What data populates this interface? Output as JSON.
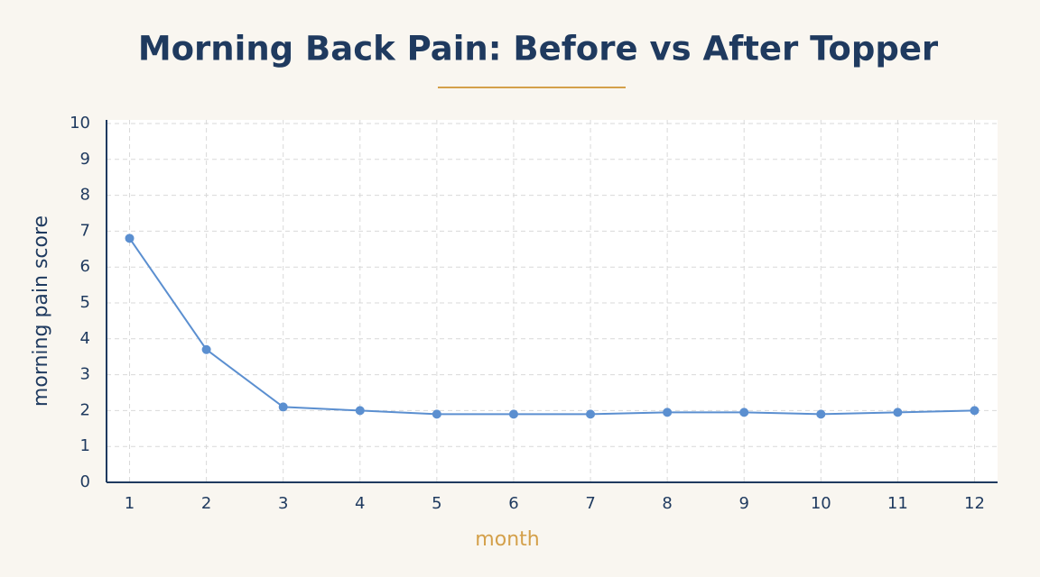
{
  "chart_data": {
    "type": "line",
    "title": "Morning Back Pain: Before vs After Topper",
    "x_label": "month",
    "y_label": "morning pain score",
    "x": [
      1,
      2,
      3,
      4,
      5,
      6,
      7,
      8,
      9,
      10,
      11,
      12
    ],
    "series": [
      {
        "color": "#5b8fd0",
        "values": [
          6.8,
          3.7,
          2.1,
          2.0,
          1.9,
          1.9,
          1.9,
          1.95,
          1.95,
          1.9,
          1.95,
          2.0
        ]
      }
    ],
    "xlim": [
      0.7,
      12.3
    ],
    "xticks": [
      1,
      2,
      3,
      4,
      5,
      6,
      7,
      8,
      9,
      10,
      11,
      12
    ],
    "ylim": [
      0,
      10.1
    ],
    "yticks": [
      0,
      1,
      2,
      3,
      4,
      5,
      6,
      7,
      8,
      9,
      10
    ],
    "grid": true
  }
}
